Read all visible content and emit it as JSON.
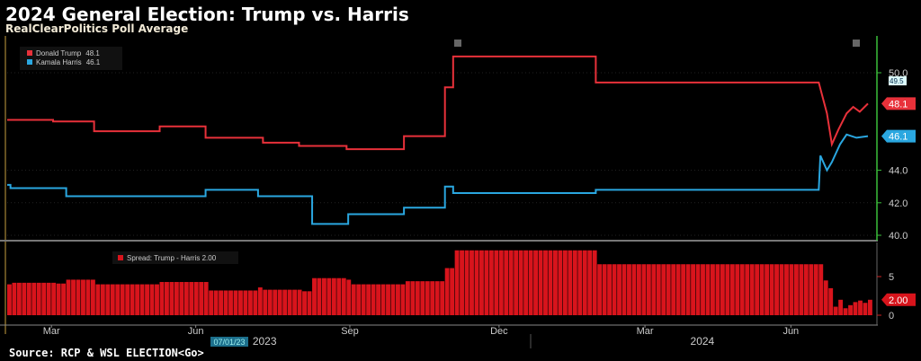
{
  "header": {
    "title": "2024 General Election: Trump vs. Harris",
    "subtitle": "RealClearPolitics Poll Average"
  },
  "footer": {
    "source": "Source: RCP & WSL ELECTION<Go>",
    "date_badge": "07/01/23"
  },
  "colors": {
    "trump": "#e8313a",
    "harris": "#2aa7e0",
    "axis": "#3bbf3b",
    "spread": "#d8141c"
  },
  "chart_data": [
    {
      "type": "line",
      "title": "2024 General Election: Trump vs. Harris",
      "subtitle": "RealClearPolitics Poll Average",
      "x_unit": "days since start (late Jan 2023)",
      "ylim": [
        39.6,
        51.5
      ],
      "yticks": [
        "40.0",
        "42.0",
        "44.0",
        "50.0"
      ],
      "ytick_values": [
        40,
        42,
        44,
        50
      ],
      "marker_label": "49.5",
      "legend": [
        {
          "name": "Donald Trump",
          "last": "48.1"
        },
        {
          "name": "Kamala Harris",
          "last": "46.1"
        }
      ],
      "series": [
        {
          "name": "Donald Trump",
          "last": "48.1",
          "points": [
            [
              0,
              47.1
            ],
            [
              28,
              47.0
            ],
            [
              53,
              46.4
            ],
            [
              93,
              46.7
            ],
            [
              121,
              46.0
            ],
            [
              156,
              45.7
            ],
            [
              178,
              45.5
            ],
            [
              207,
              45.3
            ],
            [
              242,
              46.1
            ],
            [
              267,
              49.1
            ],
            [
              272,
              51.0
            ],
            [
              359,
              49.4
            ],
            [
              495,
              49.4
            ],
            [
              500,
              47.5
            ],
            [
              503,
              45.6
            ],
            [
              507,
              46.5
            ],
            [
              512,
              47.5
            ],
            [
              516,
              47.9
            ],
            [
              520,
              47.6
            ],
            [
              525,
              48.1
            ]
          ]
        },
        {
          "name": "Kamala Harris",
          "last": "46.1",
          "points": [
            [
              0,
              43.1
            ],
            [
              2,
              42.9
            ],
            [
              36,
              42.4
            ],
            [
              121,
              42.8
            ],
            [
              153,
              42.4
            ],
            [
              186,
              40.7
            ],
            [
              208,
              41.3
            ],
            [
              242,
              41.7
            ],
            [
              267,
              43.0
            ],
            [
              272,
              42.6
            ],
            [
              359,
              42.8
            ],
            [
              495,
              42.8
            ],
            [
              496,
              44.9
            ],
            [
              500,
              44.0
            ],
            [
              503,
              44.5
            ],
            [
              508,
              45.6
            ],
            [
              512,
              46.2
            ],
            [
              518,
              46.0
            ],
            [
              525,
              46.1
            ]
          ]
        }
      ],
      "xticks": [
        {
          "label": "Mar",
          "day": 27
        },
        {
          "label": "Jun",
          "day": 115
        },
        {
          "label": "Sep",
          "day": 209
        },
        {
          "label": "Dec",
          "day": 300
        },
        {
          "label": "Mar",
          "day": 389
        },
        {
          "label": "Jun",
          "day": 478
        }
      ],
      "years": [
        {
          "label": "2023",
          "day": 157
        },
        {
          "label": "2024",
          "day": 424
        }
      ],
      "xlim": [
        0,
        525
      ]
    },
    {
      "type": "bar",
      "title": "Spread: Trump - Harris",
      "legend": "Spread: Trump - Harris 2.00",
      "last": "2.00",
      "ylim": [
        -1,
        10
      ],
      "yticks": [
        "0",
        "5"
      ],
      "ytick_values": [
        0,
        5
      ],
      "derived_from": "Donald Trump minus Kamala Harris",
      "bar_step_days": 3
    }
  ]
}
